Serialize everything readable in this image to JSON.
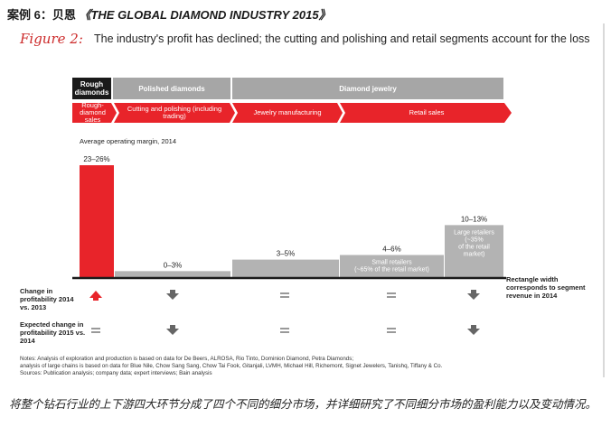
{
  "header": {
    "prefix": "案例 6：贝恩",
    "title": "《THE GLOBAL DIAMOND INDUSTRY 2015》"
  },
  "figure": {
    "label": "Figure 2:",
    "title": "The industry's profit has declined; the cutting and polishing and retail segments account for the loss"
  },
  "value_chain": {
    "top": [
      "Rough diamonds",
      "Polished diamonds",
      "Diamond jewelry"
    ],
    "bottom": [
      "Rough-diamond sales",
      "Cutting and polishing (including trading)",
      "Jewelry manufacturing",
      "Retail sales"
    ]
  },
  "chart_data": {
    "type": "bar",
    "title": "Average operating margin, 2014",
    "categories": [
      "Rough-diamond sales",
      "Cutting and polishing (including trading)",
      "Jewelry manufacturing",
      "Small retailers",
      "Large retailers"
    ],
    "values": [
      24.5,
      1.5,
      4,
      5,
      11.5
    ],
    "value_labels": [
      "23–26%",
      "0–3%",
      "3–5%",
      "4–6%",
      "10–13%"
    ],
    "bar_notes": [
      "",
      "",
      "",
      "Small retailers (~65% of the retail market)",
      "Large retailers (~35% of the retail market)"
    ],
    "colors": [
      "#e8242a",
      "#b3b3b3",
      "#b3b3b3",
      "#b3b3b3",
      "#b3b3b3"
    ],
    "width_note": "Rectangle width corresponds to segment revenue in 2014",
    "change_2014_label": "Change in profitability 2014 vs. 2013",
    "change_2014": [
      "up",
      "down",
      "flat",
      "flat",
      "down"
    ],
    "expected_change_label": "Expected change in profitability 2015 vs. 2014",
    "expected_change": [
      "flat",
      "down",
      "flat",
      "flat",
      "down"
    ]
  },
  "notes": [
    "Notes: Analysis of exploration and production is based on data for De Beers, ALROSA, Rio Tinto, Dominion Diamond, Petra Diamonds;",
    "analysis of large chains is based on data for Blue Nile, Chow Sang Sang, Chow Tai Fook, Gitanjali, LVMH, Michael Hill, Richemont, Signet Jewelers, Tanishq, Tiffany & Co.",
    "Sources: Publication analysis; company data; expert interviews; Bain analysis"
  ],
  "caption": "将整个钻石行业的上下游四大环节分成了四个不同的细分市场，并详细研究了不同细分市场的盈利能力以及变动情况。",
  "colors": {
    "red": "#e8242a",
    "gray": "#b3b3b3",
    "dark": "#1a1a1a",
    "arrow": "#666666"
  }
}
